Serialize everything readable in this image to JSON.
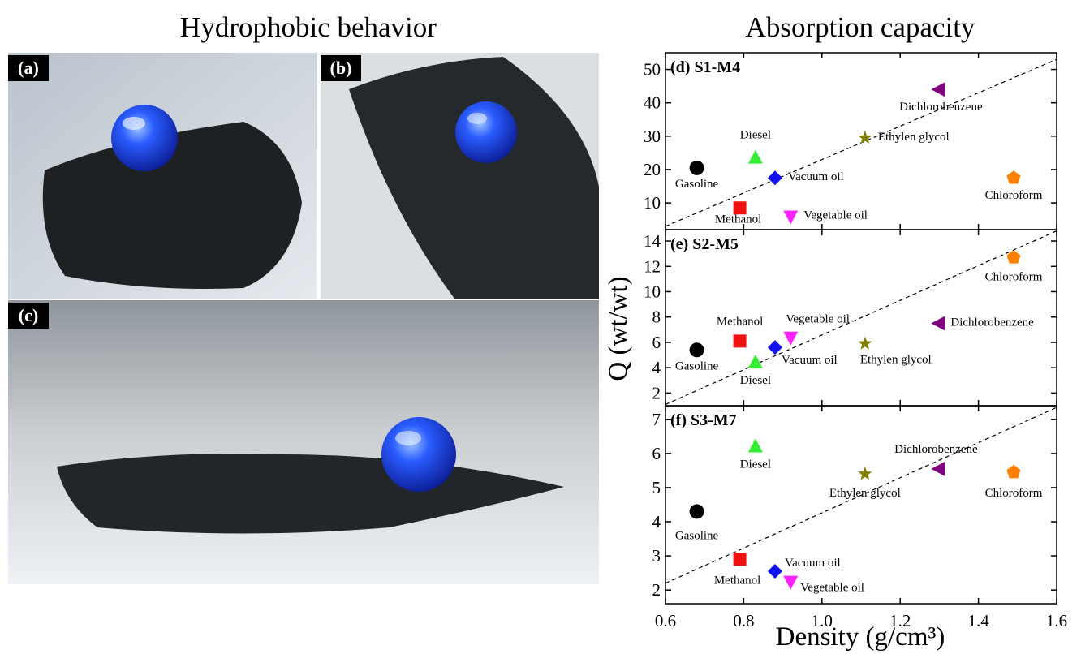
{
  "left_title": "Hydrophobic behavior",
  "photo_labels": [
    "(a)",
    "(b)",
    "(c)"
  ],
  "right_title": "Absorption capacity",
  "x_label": "Density (g/cm³)",
  "y_label": "Q (wt/wt)",
  "chart_data": [
    {
      "type": "scatter",
      "title": "(d) S1-M4",
      "xlim": [
        0.6,
        1.6
      ],
      "xticks": [
        0.6,
        0.8,
        1,
        1.2,
        1.4,
        1.6
      ],
      "ylim": [
        2,
        55
      ],
      "yticks": [
        10,
        20,
        30,
        40,
        50
      ],
      "trend_line": {
        "x": [
          0.6,
          1.6
        ],
        "values": [
          3,
          53
        ]
      },
      "series": [
        {
          "name": "Gasoline",
          "color": "#000000",
          "marker": "circle",
          "x": [
            0.68
          ],
          "values": [
            20.5
          ]
        },
        {
          "name": "Methanol",
          "color": "#ee1111",
          "marker": "square",
          "x": [
            0.79
          ],
          "values": [
            8.5
          ]
        },
        {
          "name": "Diesel",
          "color": "#33ee33",
          "marker": "triangle-up",
          "x": [
            0.83
          ],
          "values": [
            23.5
          ]
        },
        {
          "name": "Vacuum oil",
          "color": "#1111ee",
          "marker": "diamond",
          "x": [
            0.88
          ],
          "values": [
            17.5
          ]
        },
        {
          "name": "Vegetable oil",
          "color": "#ff22ff",
          "marker": "triangle-down",
          "x": [
            0.92
          ],
          "values": [
            6
          ]
        },
        {
          "name": "Ethylen glycol",
          "color": "#808000",
          "marker": "star",
          "x": [
            1.11
          ],
          "values": [
            29.5
          ]
        },
        {
          "name": "Dichlorobenzene",
          "color": "#800080",
          "marker": "triangle-left",
          "x": [
            1.3
          ],
          "values": [
            44
          ]
        },
        {
          "name": "Chloroform",
          "color": "#ff8000",
          "marker": "pentagon",
          "x": [
            1.49
          ],
          "values": [
            17.5
          ]
        }
      ]
    },
    {
      "type": "scatter",
      "title": "(e) S2-M5",
      "xlim": [
        0.6,
        1.6
      ],
      "xticks": [
        0.6,
        0.8,
        1,
        1.2,
        1.4,
        1.6
      ],
      "ylim": [
        1,
        14.9
      ],
      "yticks": [
        2,
        4,
        6,
        8,
        10,
        12,
        14
      ],
      "trend_line": {
        "x": [
          0.6,
          1.6
        ],
        "values": [
          1.1,
          14.8
        ]
      },
      "series": [
        {
          "name": "Gasoline",
          "color": "#000000",
          "marker": "circle",
          "x": [
            0.68
          ],
          "values": [
            5.4
          ]
        },
        {
          "name": "Methanol",
          "color": "#ee1111",
          "marker": "square",
          "x": [
            0.79
          ],
          "values": [
            6.1
          ]
        },
        {
          "name": "Diesel",
          "color": "#33ee33",
          "marker": "triangle-up",
          "x": [
            0.83
          ],
          "values": [
            4.4
          ]
        },
        {
          "name": "Vacuum oil",
          "color": "#1111ee",
          "marker": "diamond",
          "x": [
            0.88
          ],
          "values": [
            5.6
          ]
        },
        {
          "name": "Vegetable oil",
          "color": "#ff22ff",
          "marker": "triangle-down",
          "x": [
            0.92
          ],
          "values": [
            6.4
          ]
        },
        {
          "name": "Ethylen glycol",
          "color": "#808000",
          "marker": "star",
          "x": [
            1.11
          ],
          "values": [
            5.9
          ]
        },
        {
          "name": "Dichlorobenzene",
          "color": "#800080",
          "marker": "triangle-left",
          "x": [
            1.3
          ],
          "values": [
            7.5
          ]
        },
        {
          "name": "Chloroform",
          "color": "#ff8000",
          "marker": "pentagon",
          "x": [
            1.49
          ],
          "values": [
            12.7
          ]
        }
      ]
    },
    {
      "type": "scatter",
      "title": "(f) S3-M7",
      "xlim": [
        0.6,
        1.6
      ],
      "xticks": [
        0.6,
        0.8,
        {
          "value": 1,
          "label": "1.0"
        },
        1.2,
        1.4,
        1.6
      ],
      "ylim": [
        1.6,
        7.4
      ],
      "yticks": [
        2,
        3,
        4,
        5,
        6,
        7
      ],
      "trend_line": {
        "x": [
          0.6,
          1.6
        ],
        "values": [
          2.2,
          7.35
        ]
      },
      "series": [
        {
          "name": "Gasoline",
          "color": "#000000",
          "marker": "circle",
          "x": [
            0.68
          ],
          "values": [
            4.3
          ]
        },
        {
          "name": "Methanol",
          "color": "#ee1111",
          "marker": "square",
          "x": [
            0.79
          ],
          "values": [
            2.9
          ]
        },
        {
          "name": "Diesel",
          "color": "#33ee33",
          "marker": "triangle-up",
          "x": [
            0.83
          ],
          "values": [
            6.2
          ]
        },
        {
          "name": "Vacuum oil",
          "color": "#1111ee",
          "marker": "diamond",
          "x": [
            0.88
          ],
          "values": [
            2.55
          ]
        },
        {
          "name": "Vegetable oil",
          "color": "#ff22ff",
          "marker": "triangle-down",
          "x": [
            0.92
          ],
          "values": [
            2.25
          ]
        },
        {
          "name": "Ethylen glycol",
          "color": "#808000",
          "marker": "star",
          "x": [
            1.11
          ],
          "values": [
            5.4
          ]
        },
        {
          "name": "Dichlorobenzene",
          "color": "#800080",
          "marker": "triangle-left",
          "x": [
            1.3
          ],
          "values": [
            5.55
          ]
        },
        {
          "name": "Chloroform",
          "color": "#ff8000",
          "marker": "pentagon",
          "x": [
            1.49
          ],
          "values": [
            5.45
          ]
        }
      ]
    }
  ]
}
